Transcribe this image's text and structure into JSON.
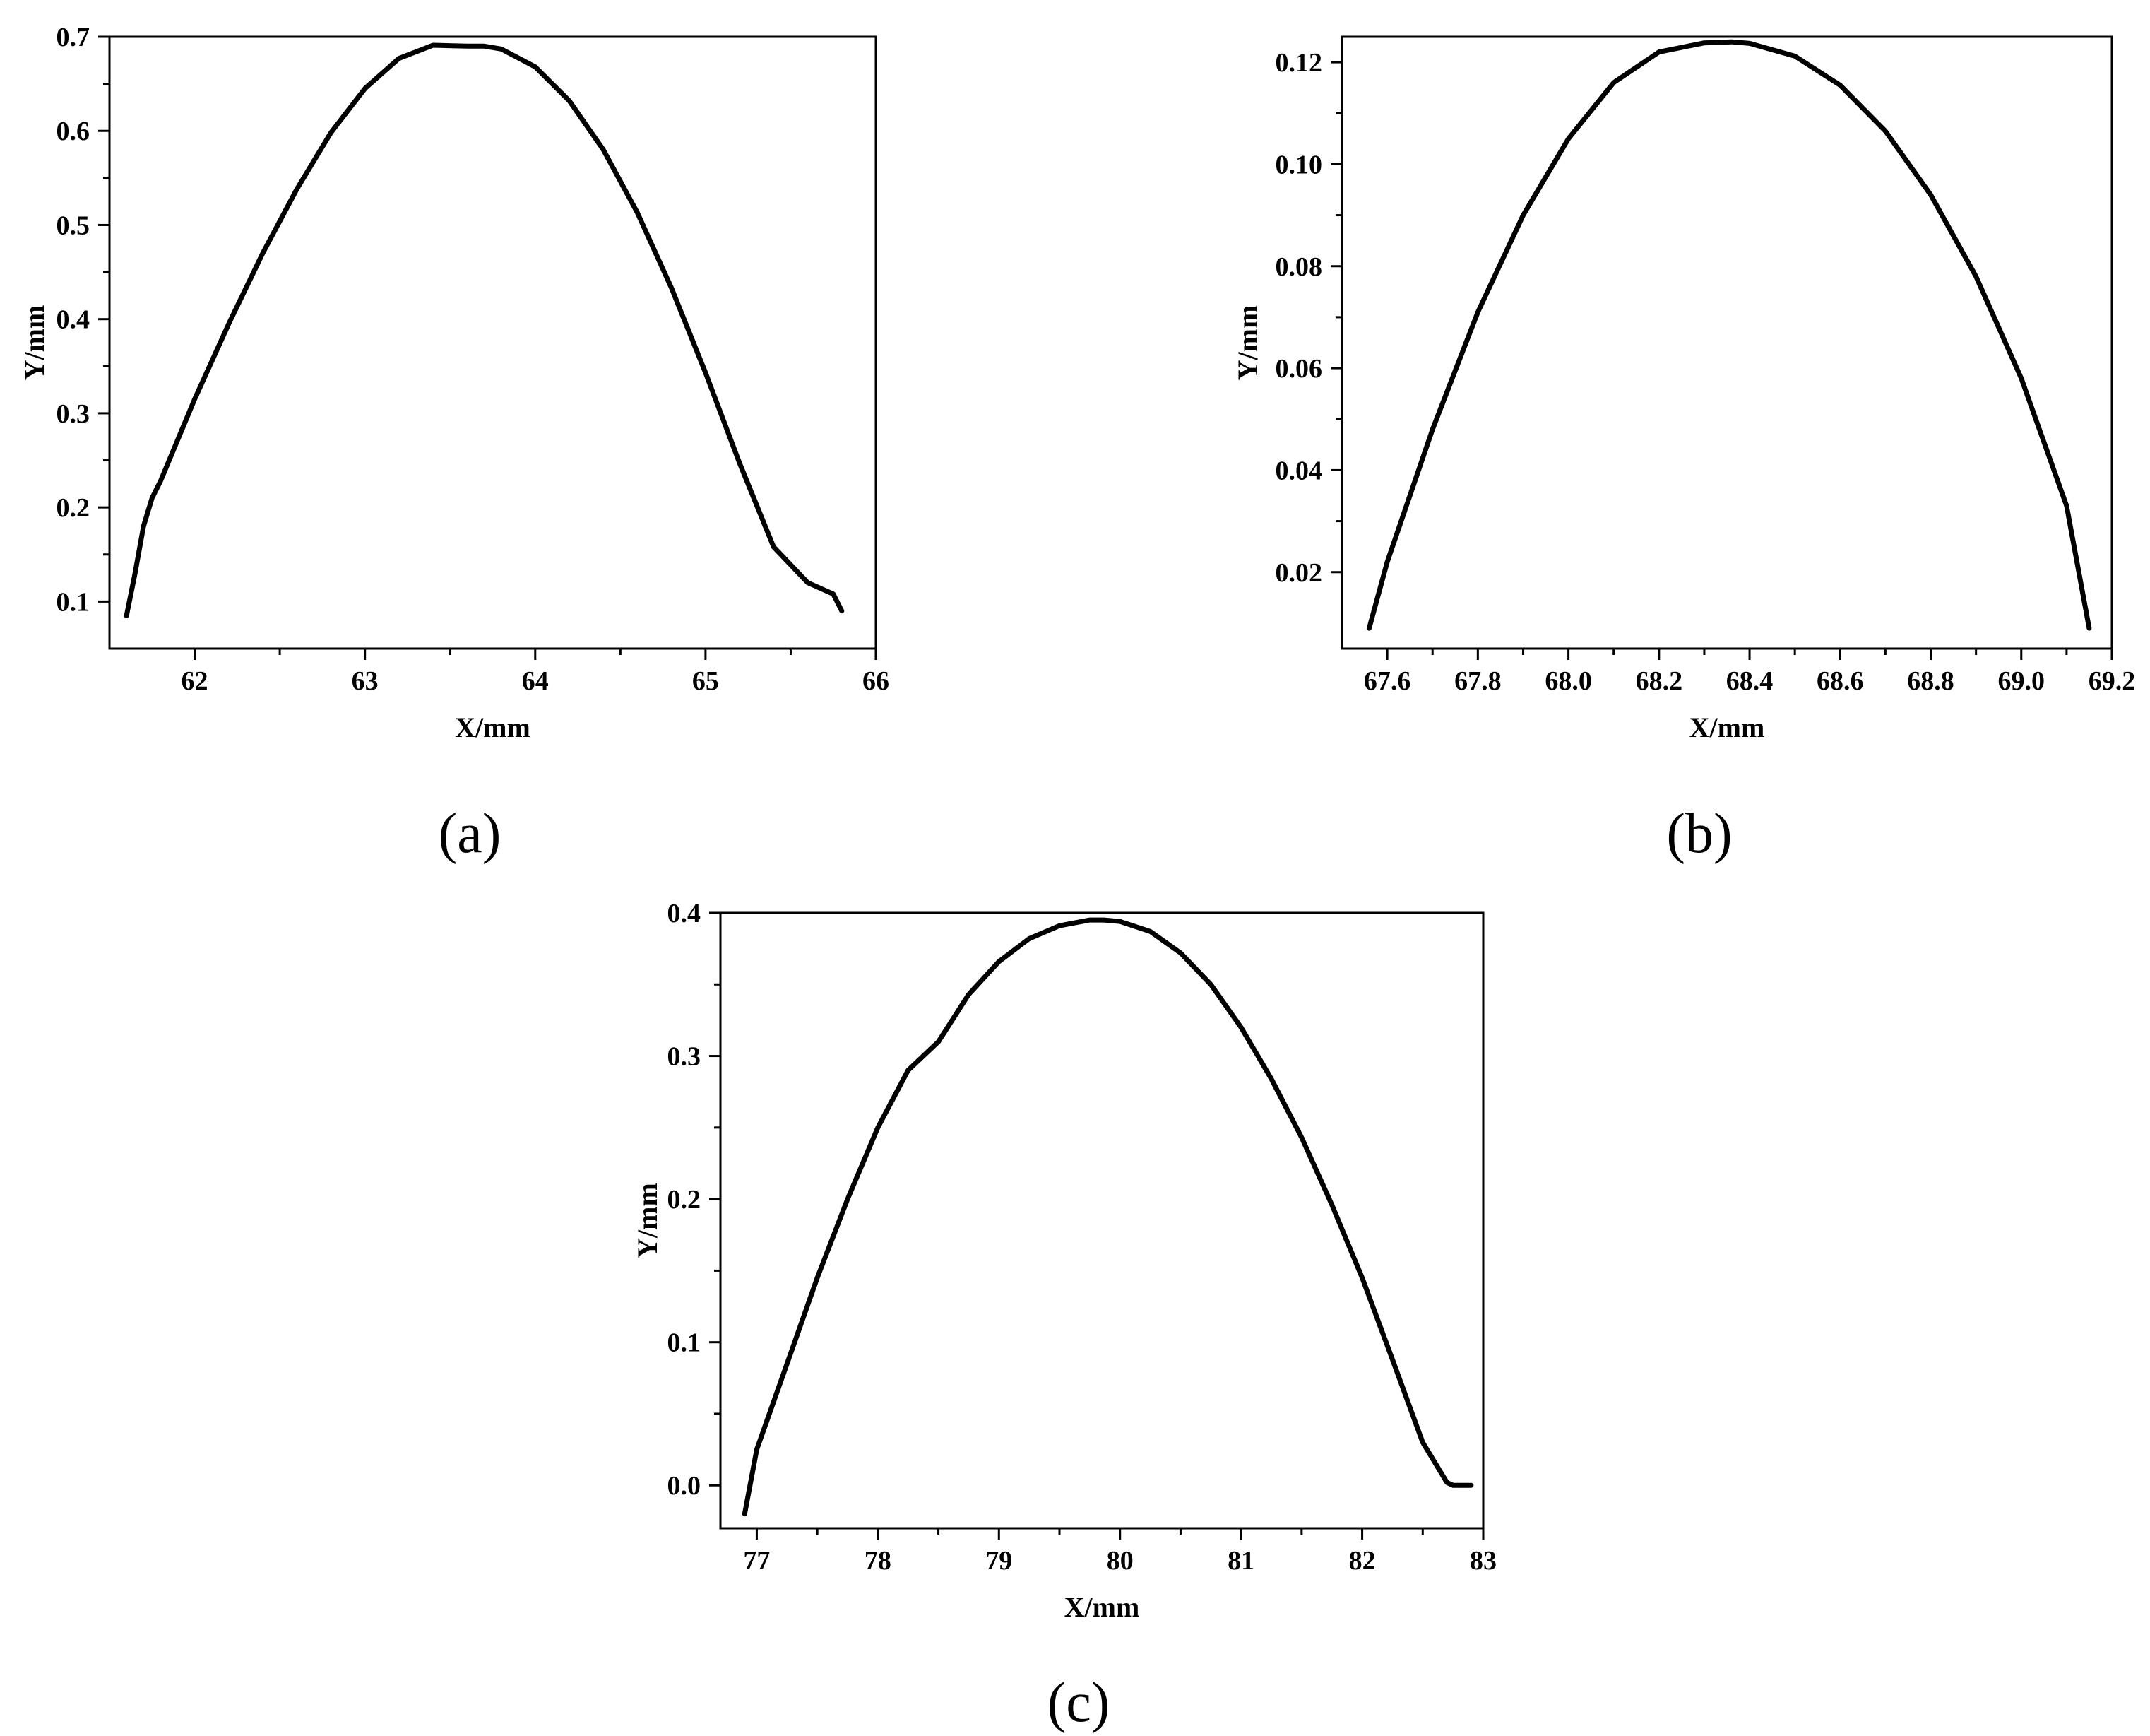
{
  "chart_data": [
    {
      "type": "line",
      "panel_label": "(a)",
      "title": "",
      "xlabel": "X/mm",
      "ylabel": "Y/mm",
      "xlim": [
        61.5,
        66.0
      ],
      "ylim": [
        0.05,
        0.7
      ],
      "xticks": [
        62,
        63,
        64,
        65,
        66
      ],
      "xtick_labels": [
        "62",
        "63",
        "64",
        "65",
        "66"
      ],
      "yticks": [
        0.1,
        0.2,
        0.3,
        0.4,
        0.5,
        0.6,
        0.7
      ],
      "ytick_labels": [
        "0.1",
        "0.2",
        "0.3",
        "0.4",
        "0.5",
        "0.6",
        "0.7"
      ],
      "grid": false,
      "series": [
        {
          "color": "#000000",
          "x": [
            61.6,
            61.65,
            61.7,
            61.75,
            61.8,
            62.0,
            62.2,
            62.4,
            62.6,
            62.8,
            63.0,
            63.2,
            63.4,
            63.6,
            63.7,
            63.8,
            64.0,
            64.2,
            64.4,
            64.6,
            64.8,
            65.0,
            65.2,
            65.4,
            65.6,
            65.75,
            65.8
          ],
          "y": [
            0.085,
            0.13,
            0.18,
            0.21,
            0.228,
            0.315,
            0.395,
            0.47,
            0.538,
            0.598,
            0.645,
            0.677,
            0.691,
            0.69,
            0.69,
            0.687,
            0.668,
            0.632,
            0.58,
            0.513,
            0.433,
            0.343,
            0.247,
            0.158,
            0.12,
            0.108,
            0.09
          ]
        }
      ]
    },
    {
      "type": "line",
      "panel_label": "(b)",
      "title": "",
      "xlabel": "X/mm",
      "ylabel": "Y/mm",
      "xlim": [
        67.5,
        69.2
      ],
      "ylim": [
        0.005,
        0.125
      ],
      "xticks": [
        67.6,
        67.8,
        68.0,
        68.2,
        68.4,
        68.6,
        68.8,
        69.0,
        69.2
      ],
      "xtick_labels": [
        "67.6",
        "67.8",
        "68.0",
        "68.2",
        "68.4",
        "68.6",
        "68.8",
        "69.0",
        "69.2"
      ],
      "yticks": [
        0.02,
        0.04,
        0.06,
        0.08,
        0.1,
        0.12
      ],
      "ytick_labels": [
        "0.02",
        "0.04",
        "0.06",
        "0.08",
        "0.10",
        "0.12"
      ],
      "grid": false,
      "series": [
        {
          "color": "#000000",
          "x": [
            67.56,
            67.6,
            67.7,
            67.8,
            67.9,
            68.0,
            68.1,
            68.2,
            68.3,
            68.36,
            68.4,
            68.5,
            68.6,
            68.7,
            68.8,
            68.9,
            69.0,
            69.1,
            69.15
          ],
          "y": [
            0.009,
            0.022,
            0.048,
            0.071,
            0.09,
            0.105,
            0.116,
            0.122,
            0.1238,
            0.124,
            0.1237,
            0.1212,
            0.1155,
            0.1065,
            0.094,
            0.078,
            0.058,
            0.033,
            0.009
          ]
        }
      ]
    },
    {
      "type": "line",
      "panel_label": "(c)",
      "title": "",
      "xlabel": "X/mm",
      "ylabel": "Y/mm",
      "xlim": [
        76.7,
        83.0
      ],
      "ylim": [
        -0.03,
        0.4
      ],
      "xticks": [
        77,
        78,
        79,
        80,
        81,
        82,
        83
      ],
      "xtick_labels": [
        "77",
        "78",
        "79",
        "80",
        "81",
        "82",
        "83"
      ],
      "yticks": [
        0.0,
        0.1,
        0.2,
        0.3,
        0.4
      ],
      "ytick_labels": [
        "0.0",
        "0.1",
        "0.2",
        "0.3",
        "0.4"
      ],
      "grid": false,
      "series": [
        {
          "color": "#000000",
          "x": [
            76.9,
            77.0,
            77.25,
            77.5,
            77.75,
            78.0,
            78.25,
            78.5,
            78.75,
            79.0,
            79.25,
            79.5,
            79.75,
            79.87,
            80.0,
            80.25,
            80.5,
            80.75,
            81.0,
            81.25,
            81.5,
            81.75,
            82.0,
            82.25,
            82.5,
            82.7,
            82.75,
            82.9
          ],
          "y": [
            -0.02,
            0.025,
            0.085,
            0.145,
            0.2,
            0.25,
            0.29,
            0.31,
            0.343,
            0.366,
            0.382,
            0.391,
            0.395,
            0.395,
            0.394,
            0.387,
            0.372,
            0.35,
            0.32,
            0.284,
            0.243,
            0.196,
            0.145,
            0.088,
            0.03,
            0.002,
            0.0,
            0.0
          ]
        }
      ]
    }
  ]
}
